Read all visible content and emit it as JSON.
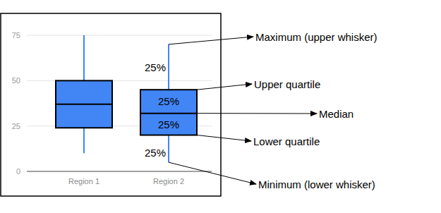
{
  "chart_data": {
    "type": "box",
    "categories": [
      "Region 1",
      "Region 2"
    ],
    "min": [
      10,
      5
    ],
    "q1": [
      24,
      20
    ],
    "median": [
      37,
      32
    ],
    "q3": [
      50,
      45
    ],
    "max": [
      75,
      70
    ],
    "color": "#4285f4",
    "ylim": [
      0,
      75
    ],
    "yticks": [
      0,
      25,
      50,
      75
    ],
    "grid": true,
    "share_labels": [
      "25%",
      "25%",
      "25%",
      "25%"
    ],
    "annotations": {
      "max": "Maximum (upper whisker)",
      "q3": "Upper quartile",
      "median": "Median",
      "q1": "Lower quartile",
      "min": "Minimum (lower whisker)"
    }
  }
}
